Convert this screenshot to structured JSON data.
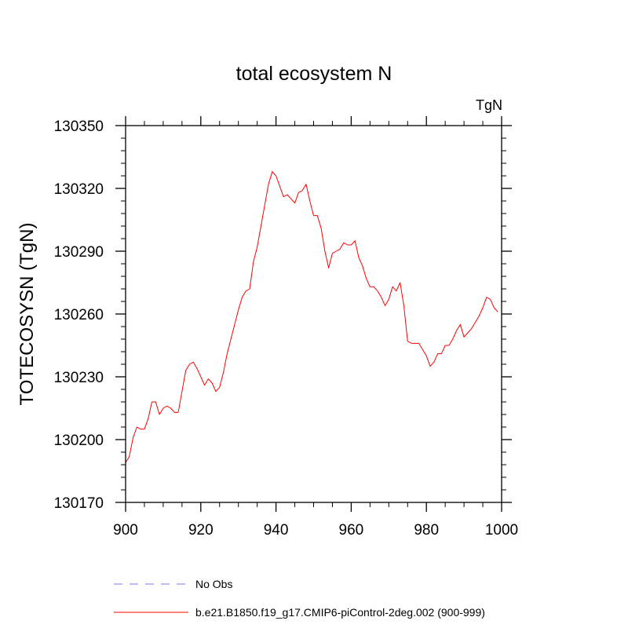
{
  "chart_data": {
    "type": "line",
    "title": "total ecosystem N",
    "units_label": "TgN",
    "xlabel": "",
    "ylabel": "TOTECOSYSN  (TgN)",
    "xlim": [
      900,
      1000
    ],
    "ylim": [
      130170,
      130350
    ],
    "x_ticks": [
      900,
      920,
      940,
      960,
      980,
      1000
    ],
    "x_minor_step": 5,
    "y_ticks": [
      130170,
      130200,
      130230,
      130260,
      130290,
      130320,
      130350
    ],
    "y_minor_step": 6,
    "x_tick_labels": [
      "900",
      "920",
      "940",
      "960",
      "980",
      "1000"
    ],
    "y_tick_labels": [
      "130170",
      "130200",
      "130230",
      "130260",
      "130290",
      "130320",
      "130350"
    ],
    "series": [
      {
        "name": "b.e21.B1850.f19_g17.CMIP6-piControl-2deg.002 (900-999)",
        "color": "#ff0000",
        "x": [
          900,
          901,
          902,
          903,
          904,
          905,
          906,
          907,
          908,
          909,
          910,
          911,
          912,
          913,
          914,
          915,
          916,
          917,
          918,
          919,
          920,
          921,
          922,
          923,
          924,
          925,
          926,
          927,
          928,
          929,
          930,
          931,
          932,
          933,
          934,
          935,
          936,
          937,
          938,
          939,
          940,
          941,
          942,
          943,
          944,
          945,
          946,
          947,
          948,
          949,
          950,
          951,
          952,
          953,
          954,
          955,
          956,
          957,
          958,
          959,
          960,
          961,
          962,
          963,
          964,
          965,
          966,
          967,
          968,
          969,
          970,
          971,
          972,
          973,
          974,
          975,
          976,
          977,
          978,
          979,
          980,
          981,
          982,
          983,
          984,
          985,
          986,
          987,
          988,
          989,
          990,
          991,
          992,
          993,
          994,
          995,
          996,
          997,
          998,
          999
        ],
        "values": [
          130189,
          130192,
          130201,
          130206,
          130205,
          130205,
          130210,
          130218,
          130218,
          130212,
          130215,
          130216,
          130215,
          130213,
          130213,
          130223,
          130233,
          130236,
          130237,
          130234,
          130230,
          130226,
          130229,
          130227,
          130223,
          130225,
          130232,
          130241,
          130248,
          130255,
          130262,
          130268,
          130271,
          130272,
          130285,
          130292,
          130302,
          130312,
          130322,
          130328,
          130326,
          130321,
          130316,
          130317,
          130315,
          130313,
          130318,
          130319,
          130322,
          130314,
          130307,
          130307,
          130301,
          130290,
          130282,
          130289,
          130290,
          130291,
          130294,
          130293,
          130293,
          130295,
          130287,
          130283,
          130277,
          130273,
          130273,
          130271,
          130268,
          130264,
          130267,
          130273,
          130271,
          130275,
          130264,
          130247,
          130246,
          130246,
          130246,
          130243,
          130240,
          130235,
          130237,
          130241,
          130241,
          130245,
          130245,
          130248,
          130252,
          130255,
          130249,
          130251,
          130253,
          130256,
          130259,
          130263,
          130268,
          130267,
          130263,
          130261
        ]
      }
    ],
    "legend": [
      {
        "label": "No Obs",
        "color": "#7777ff",
        "style": "dashed"
      },
      {
        "label": "b.e21.B1850.f19_g17.CMIP6-piControl-2deg.002 (900-999)",
        "color": "#ff0000",
        "style": "solid"
      }
    ],
    "legend_placement": "bottom"
  }
}
